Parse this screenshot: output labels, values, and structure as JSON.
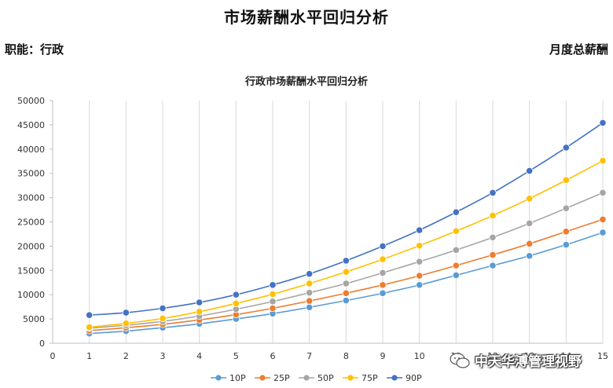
{
  "page": {
    "title": "市场薪酬水平回归分析",
    "left_label": "职能：行政",
    "right_label": "月度总薪酬",
    "watermark": "中天华溥管理视野"
  },
  "chart_data": {
    "type": "line",
    "title": "行政市场薪酬水平回归分析",
    "xlabel": "",
    "ylabel": "",
    "x": [
      1,
      2,
      3,
      4,
      5,
      6,
      7,
      8,
      9,
      10,
      11,
      12,
      13,
      14,
      15
    ],
    "x_ticks": [
      0,
      1,
      2,
      3,
      4,
      5,
      6,
      7,
      8,
      9,
      10,
      11,
      12,
      13,
      14,
      15
    ],
    "xlim": [
      0,
      15
    ],
    "y_ticks": [
      0,
      5000,
      10000,
      15000,
      20000,
      25000,
      30000,
      35000,
      40000,
      45000,
      50000
    ],
    "ylim": [
      0,
      50000
    ],
    "grid": "vertical",
    "legend_position": "bottom",
    "series": [
      {
        "name": "10P",
        "color": "#5b9bd5",
        "values": [
          2000,
          2500,
          3200,
          4000,
          5000,
          6100,
          7400,
          8800,
          10300,
          12000,
          14000,
          16000,
          18000,
          20300,
          22800
        ]
      },
      {
        "name": "25P",
        "color": "#ed7d31",
        "values": [
          2600,
          3200,
          3900,
          4800,
          5900,
          7200,
          8700,
          10300,
          12000,
          13900,
          16000,
          18200,
          20500,
          23000,
          25500
        ]
      },
      {
        "name": "50P",
        "color": "#a5a5a5",
        "values": [
          3100,
          3700,
          4500,
          5600,
          7000,
          8600,
          10400,
          12300,
          14500,
          16800,
          19200,
          21800,
          24700,
          27800,
          31000
        ]
      },
      {
        "name": "75P",
        "color": "#ffc000",
        "values": [
          3300,
          4100,
          5100,
          6500,
          8200,
          10100,
          12300,
          14700,
          17300,
          20100,
          23100,
          26300,
          29800,
          33600,
          37600
        ]
      },
      {
        "name": "90P",
        "color": "#4472c4",
        "values": [
          5800,
          6300,
          7200,
          8400,
          10000,
          12000,
          14300,
          17000,
          20000,
          23300,
          27000,
          31000,
          35500,
          40300,
          45400
        ]
      }
    ]
  }
}
